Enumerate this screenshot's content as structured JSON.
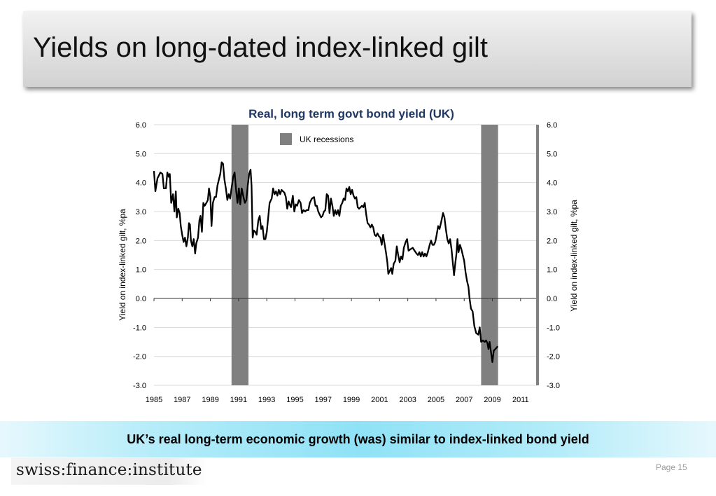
{
  "slide": {
    "title": "Yields on long-dated index-linked gilt",
    "caption": "UK’s real long-term economic growth (was) similar to index-linked bond yield",
    "logo_text": "swiss:finance:institute",
    "page_label": "Page 15"
  },
  "colors": {
    "line": "#000000",
    "recession": "#808080",
    "title": "#1f3864",
    "gridline": "#d9d9d9",
    "caption_band": "#8fe2f6"
  },
  "chart_data": {
    "type": "line",
    "title": "Real, long term govt bond yield (UK)",
    "ylabel_left": "Yield on index-linked gilt, %pa",
    "ylabel_right": "Yield on index-linked gilt, %pa",
    "ylim": [
      -3,
      6
    ],
    "yticks": [
      "6.0",
      "5.0",
      "4.0",
      "3.0",
      "2.0",
      "1.0",
      "0.0",
      "-1.0",
      "-2.0",
      "-3.0"
    ],
    "xlim": [
      1985,
      2012.2
    ],
    "xticks": [
      "1985",
      "1987",
      "1989",
      "1991",
      "1993",
      "1995",
      "1997",
      "1999",
      "2001",
      "2003",
      "2005",
      "2007",
      "2009",
      "2011"
    ],
    "grid": true,
    "legend": {
      "position": "top-center",
      "label": "UK recessions"
    },
    "recessions": [
      {
        "start": 1990.5,
        "end": 1991.7
      },
      {
        "start": 2008.2,
        "end": 2009.4
      }
    ],
    "series": [
      {
        "values": [
          [
            1985.0,
            4.4
          ],
          [
            1985.1,
            3.7
          ],
          [
            1985.25,
            4.15
          ],
          [
            1985.45,
            4.35
          ],
          [
            1985.6,
            4.3
          ],
          [
            1985.7,
            3.8
          ],
          [
            1985.85,
            3.8
          ],
          [
            1985.95,
            4.35
          ],
          [
            1986.05,
            4.2
          ],
          [
            1986.12,
            4.3
          ],
          [
            1986.22,
            3.3
          ],
          [
            1986.35,
            3.6
          ],
          [
            1986.45,
            3.0
          ],
          [
            1986.55,
            3.7
          ],
          [
            1986.62,
            2.8
          ],
          [
            1986.72,
            3.1
          ],
          [
            1986.82,
            2.95
          ],
          [
            1986.9,
            2.5
          ],
          [
            1987.0,
            2.2
          ],
          [
            1987.1,
            1.95
          ],
          [
            1987.2,
            2.1
          ],
          [
            1987.3,
            1.8
          ],
          [
            1987.4,
            2.1
          ],
          [
            1987.48,
            2.6
          ],
          [
            1987.55,
            2.55
          ],
          [
            1987.62,
            2.0
          ],
          [
            1987.72,
            1.8
          ],
          [
            1987.82,
            2.05
          ],
          [
            1987.92,
            1.55
          ],
          [
            1988.0,
            1.9
          ],
          [
            1988.12,
            2.1
          ],
          [
            1988.22,
            2.7
          ],
          [
            1988.3,
            2.85
          ],
          [
            1988.4,
            2.3
          ],
          [
            1988.5,
            3.3
          ],
          [
            1988.6,
            3.2
          ],
          [
            1988.72,
            3.3
          ],
          [
            1988.82,
            3.4
          ],
          [
            1988.9,
            3.8
          ],
          [
            1989.0,
            3.5
          ],
          [
            1989.08,
            2.5
          ],
          [
            1989.18,
            3.3
          ],
          [
            1989.3,
            3.5
          ],
          [
            1989.4,
            3.5
          ],
          [
            1989.5,
            3.9
          ],
          [
            1989.6,
            4.1
          ],
          [
            1989.7,
            4.3
          ],
          [
            1989.8,
            4.7
          ],
          [
            1989.9,
            4.65
          ],
          [
            1990.0,
            4.1
          ],
          [
            1990.1,
            3.8
          ],
          [
            1990.2,
            3.4
          ],
          [
            1990.3,
            3.6
          ],
          [
            1990.4,
            3.45
          ],
          [
            1990.5,
            3.8
          ],
          [
            1990.62,
            4.2
          ],
          [
            1990.72,
            4.35
          ],
          [
            1990.82,
            3.75
          ],
          [
            1990.92,
            3.3
          ],
          [
            1991.02,
            3.8
          ],
          [
            1991.12,
            3.25
          ],
          [
            1991.22,
            3.8
          ],
          [
            1991.35,
            3.5
          ],
          [
            1991.45,
            3.3
          ],
          [
            1991.55,
            3.4
          ],
          [
            1991.65,
            3.9
          ],
          [
            1991.75,
            4.3
          ],
          [
            1991.85,
            4.45
          ],
          [
            1991.92,
            3.9
          ],
          [
            1992.0,
            2.1
          ],
          [
            1992.08,
            2.35
          ],
          [
            1992.18,
            2.3
          ],
          [
            1992.28,
            2.2
          ],
          [
            1992.4,
            2.7
          ],
          [
            1992.5,
            2.85
          ],
          [
            1992.6,
            2.4
          ],
          [
            1992.7,
            2.5
          ],
          [
            1992.8,
            2.05
          ],
          [
            1992.9,
            2.05
          ],
          [
            1993.0,
            2.3
          ],
          [
            1993.1,
            2.8
          ],
          [
            1993.2,
            3.3
          ],
          [
            1993.35,
            3.45
          ],
          [
            1993.45,
            3.8
          ],
          [
            1993.55,
            3.6
          ],
          [
            1993.65,
            3.7
          ],
          [
            1993.75,
            3.55
          ],
          [
            1993.85,
            3.75
          ],
          [
            1993.95,
            3.6
          ],
          [
            1994.05,
            3.75
          ],
          [
            1994.15,
            3.7
          ],
          [
            1994.25,
            3.65
          ],
          [
            1994.35,
            3.5
          ],
          [
            1994.45,
            3.1
          ],
          [
            1994.55,
            3.35
          ],
          [
            1994.62,
            3.25
          ],
          [
            1994.72,
            3.15
          ],
          [
            1994.85,
            3.55
          ],
          [
            1994.95,
            3.0
          ],
          [
            1995.05,
            3.25
          ],
          [
            1995.15,
            3.2
          ],
          [
            1995.28,
            3.4
          ],
          [
            1995.4,
            3.3
          ],
          [
            1995.5,
            2.95
          ],
          [
            1995.6,
            3.05
          ],
          [
            1995.72,
            3.0
          ],
          [
            1995.82,
            3.05
          ],
          [
            1995.95,
            3.05
          ],
          [
            1996.05,
            3.3
          ],
          [
            1996.2,
            3.45
          ],
          [
            1996.35,
            3.5
          ],
          [
            1996.45,
            3.2
          ],
          [
            1996.55,
            3.2
          ],
          [
            1996.65,
            3.0
          ],
          [
            1996.75,
            2.9
          ],
          [
            1996.85,
            2.8
          ],
          [
            1996.95,
            2.85
          ],
          [
            1997.05,
            3.0
          ],
          [
            1997.15,
            3.05
          ],
          [
            1997.25,
            3.6
          ],
          [
            1997.35,
            3.55
          ],
          [
            1997.45,
            2.95
          ],
          [
            1997.55,
            3.45
          ],
          [
            1997.65,
            3.2
          ],
          [
            1997.75,
            2.85
          ],
          [
            1997.85,
            3.05
          ],
          [
            1997.95,
            2.9
          ],
          [
            1998.05,
            3.05
          ],
          [
            1998.15,
            2.85
          ],
          [
            1998.25,
            3.2
          ],
          [
            1998.35,
            3.3
          ],
          [
            1998.45,
            3.45
          ],
          [
            1998.55,
            3.4
          ],
          [
            1998.65,
            3.8
          ],
          [
            1998.75,
            3.7
          ],
          [
            1998.85,
            3.85
          ],
          [
            1998.95,
            3.6
          ],
          [
            1999.05,
            3.75
          ],
          [
            1999.15,
            3.55
          ],
          [
            1999.25,
            3.45
          ],
          [
            1999.35,
            3.5
          ],
          [
            1999.45,
            3.15
          ],
          [
            1999.55,
            3.1
          ],
          [
            1999.65,
            3.15
          ],
          [
            1999.75,
            3.2
          ],
          [
            1999.85,
            3.15
          ],
          [
            1999.95,
            3.3
          ],
          [
            2000.05,
            2.9
          ],
          [
            2000.15,
            2.6
          ],
          [
            2000.25,
            2.55
          ],
          [
            2000.35,
            2.45
          ],
          [
            2000.45,
            2.55
          ],
          [
            2000.55,
            2.45
          ],
          [
            2000.65,
            2.2
          ],
          [
            2000.75,
            2.15
          ],
          [
            2000.85,
            2.25
          ],
          [
            2000.95,
            2.15
          ],
          [
            2001.05,
            2.1
          ],
          [
            2001.15,
            1.85
          ],
          [
            2001.25,
            2.2
          ],
          [
            2001.35,
            1.9
          ],
          [
            2001.45,
            1.6
          ],
          [
            2001.55,
            1.25
          ],
          [
            2001.62,
            0.85
          ],
          [
            2001.72,
            0.95
          ],
          [
            2001.82,
            1.05
          ],
          [
            2001.9,
            0.85
          ],
          [
            2002.0,
            1.2
          ],
          [
            2002.12,
            1.3
          ],
          [
            2002.22,
            1.8
          ],
          [
            2002.32,
            1.5
          ],
          [
            2002.42,
            1.25
          ],
          [
            2002.52,
            1.45
          ],
          [
            2002.62,
            1.35
          ],
          [
            2002.72,
            1.75
          ],
          [
            2002.85,
            1.95
          ],
          [
            2002.95,
            2.05
          ],
          [
            2003.05,
            1.65
          ],
          [
            2003.2,
            1.7
          ],
          [
            2003.35,
            1.75
          ],
          [
            2003.48,
            1.65
          ],
          [
            2003.62,
            1.55
          ],
          [
            2003.72,
            1.5
          ],
          [
            2003.82,
            1.6
          ],
          [
            2003.92,
            1.45
          ],
          [
            2004.02,
            1.6
          ],
          [
            2004.12,
            1.45
          ],
          [
            2004.22,
            1.55
          ],
          [
            2004.32,
            1.45
          ],
          [
            2004.42,
            1.6
          ],
          [
            2004.55,
            1.85
          ],
          [
            2004.65,
            2.0
          ],
          [
            2004.75,
            1.85
          ],
          [
            2004.85,
            1.85
          ],
          [
            2004.95,
            1.95
          ],
          [
            2005.05,
            2.2
          ],
          [
            2005.15,
            2.5
          ],
          [
            2005.25,
            2.4
          ],
          [
            2005.35,
            2.6
          ],
          [
            2005.5,
            2.95
          ],
          [
            2005.6,
            2.8
          ],
          [
            2005.7,
            2.4
          ],
          [
            2005.8,
            2.05
          ],
          [
            2005.9,
            1.9
          ],
          [
            2006.0,
            2.05
          ],
          [
            2006.1,
            1.7
          ],
          [
            2006.2,
            1.2
          ],
          [
            2006.28,
            0.8
          ],
          [
            2006.38,
            1.25
          ],
          [
            2006.45,
            1.55
          ],
          [
            2006.52,
            2.05
          ],
          [
            2006.6,
            1.6
          ],
          [
            2006.7,
            1.85
          ],
          [
            2006.8,
            1.7
          ],
          [
            2006.9,
            1.5
          ],
          [
            2007.0,
            1.3
          ],
          [
            2007.1,
            0.9
          ],
          [
            2007.2,
            0.6
          ],
          [
            2007.3,
            0.4
          ],
          [
            2007.38,
            0.0
          ],
          [
            2007.48,
            -0.35
          ],
          [
            2007.6,
            -0.45
          ],
          [
            2007.72,
            -0.95
          ],
          [
            2007.85,
            -1.2
          ],
          [
            2008.0,
            -1.25
          ],
          [
            2008.1,
            -1.0
          ],
          [
            2008.2,
            -1.5
          ],
          [
            2008.32,
            -1.45
          ],
          [
            2008.45,
            -1.5
          ],
          [
            2008.55,
            -1.45
          ],
          [
            2008.65,
            -1.55
          ],
          [
            2008.72,
            -1.75
          ],
          [
            2008.8,
            -1.5
          ],
          [
            2008.9,
            -1.85
          ],
          [
            2009.0,
            -2.2
          ],
          [
            2009.1,
            -1.8
          ],
          [
            2009.2,
            -1.75
          ],
          [
            2009.3,
            -1.7
          ],
          [
            2009.38,
            -1.65
          ]
        ]
      }
    ]
  }
}
